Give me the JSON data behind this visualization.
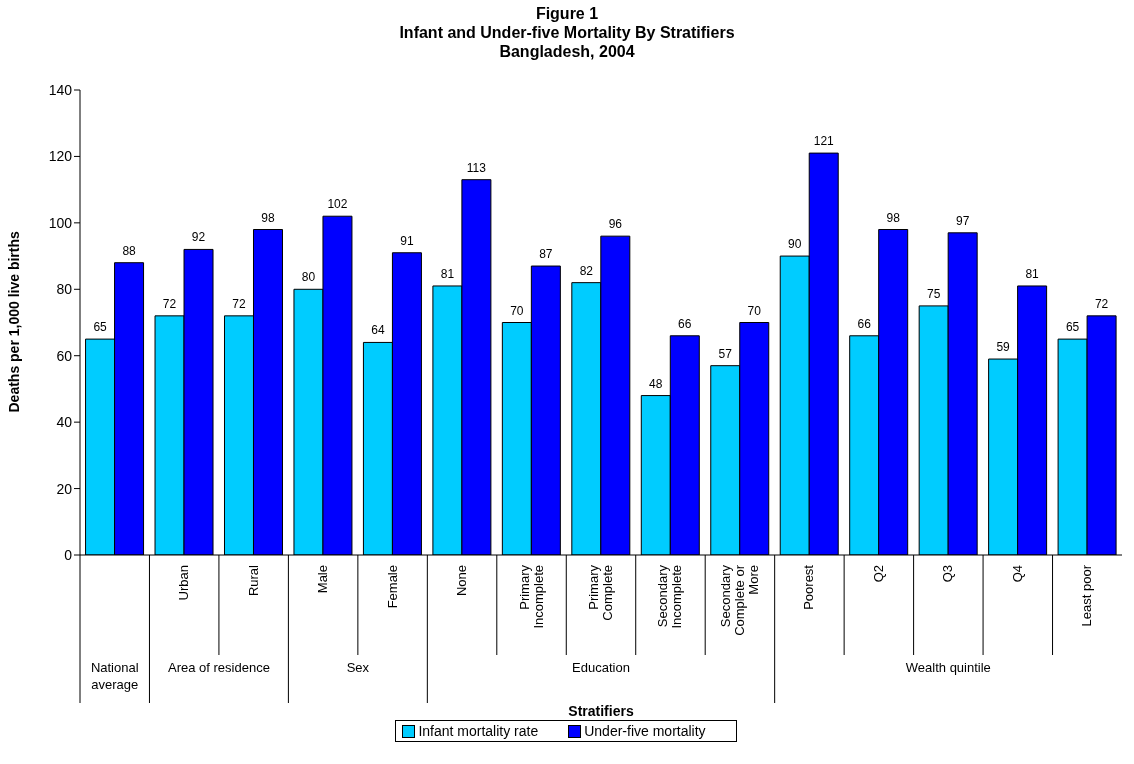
{
  "chart_data": {
    "type": "bar",
    "title": "Figure 1\nInfant and Under-five Mortality By Stratifiers\nBangladesh, 2004",
    "xlabel": "Stratifiers",
    "ylabel": "Deaths per 1,000 live births",
    "categories": [
      null,
      "Urban",
      "Rural",
      "Male",
      "Female",
      "None",
      "Primary Incomplete",
      "Primary Complete",
      "Secondary Incomplete",
      "Secondary Complete or More",
      "Poorest",
      "Q2",
      "Q3",
      "Q4",
      "Least poor"
    ],
    "annotations": [
      "National average",
      "Area of residence",
      "Sex",
      "Education",
      "Wealth quintile"
    ],
    "series": [
      {
        "name": "Infant mortality rate",
        "color": "#00ccff",
        "values": [
          65,
          72,
          72,
          80,
          64,
          81,
          70,
          82,
          48,
          57,
          90,
          66,
          75,
          59,
          65
        ]
      },
      {
        "name": "Under-five mortality",
        "color": "#0000ff",
        "values": [
          88,
          92,
          98,
          102,
          91,
          113,
          87,
          96,
          66,
          70,
          121,
          98,
          97,
          81,
          72
        ]
      }
    ],
    "ylim": [
      0,
      140
    ],
    "yticks": [
      0,
      20,
      40,
      60,
      80,
      100,
      120,
      140
    ],
    "grid": false,
    "legend": "bottom",
    "data_labels": true
  }
}
